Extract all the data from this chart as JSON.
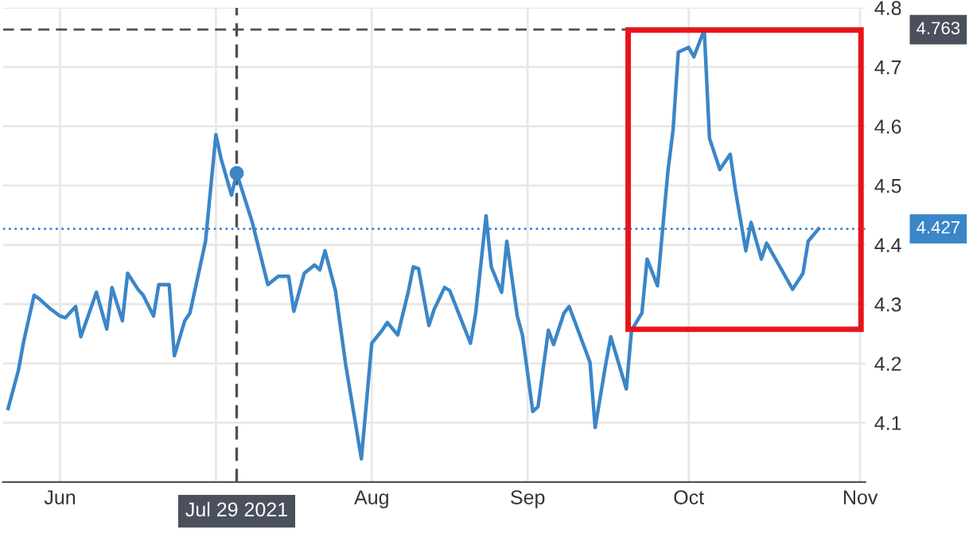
{
  "chart_data": {
    "type": "line",
    "series": [
      {
        "color": "#3b86c8",
        "x": [
          "2021-06-15",
          "2021-06-17",
          "2021-06-18",
          "2021-06-20",
          "2021-06-21",
          "2021-06-23",
          "2021-06-25",
          "2021-06-26",
          "2021-06-28",
          "2021-06-29",
          "2021-07-02",
          "2021-07-04",
          "2021-07-05",
          "2021-07-07",
          "2021-07-08",
          "2021-07-10",
          "2021-07-11",
          "2021-07-13",
          "2021-07-14",
          "2021-07-16",
          "2021-07-17",
          "2021-07-19",
          "2021-07-20",
          "2021-07-23",
          "2021-07-25",
          "2021-07-26",
          "2021-07-28",
          "2021-07-29",
          "2021-08-01",
          "2021-08-04",
          "2021-08-06",
          "2021-08-08",
          "2021-08-09",
          "2021-08-11",
          "2021-08-13",
          "2021-08-14",
          "2021-08-15",
          "2021-08-17",
          "2021-08-19",
          "2021-08-22",
          "2021-08-24",
          "2021-08-26",
          "2021-08-27",
          "2021-08-29",
          "2021-08-31",
          "2021-09-01",
          "2021-09-02",
          "2021-09-04",
          "2021-09-05",
          "2021-09-07",
          "2021-09-08",
          "2021-09-12",
          "2021-09-13",
          "2021-09-15",
          "2021-09-16",
          "2021-09-18",
          "2021-09-19",
          "2021-09-21",
          "2021-09-22",
          "2021-09-24",
          "2021-09-25",
          "2021-09-27",
          "2021-09-28",
          "2021-09-30",
          "2021-10-01",
          "2021-10-05",
          "2021-10-06",
          "2021-10-08",
          "2021-10-09",
          "2021-10-12",
          "2021-10-13",
          "2021-10-15",
          "2021-10-16",
          "2021-10-18",
          "2021-10-20",
          "2021-10-21",
          "2021-10-22",
          "2021-10-24",
          "2021-10-25",
          "2021-10-27",
          "2021-10-28",
          "2021-10-30",
          "2021-11-01",
          "2021-11-02",
          "2021-11-04",
          "2021-11-05",
          "2021-11-07",
          "2021-11-08",
          "2021-11-13",
          "2021-11-15",
          "2021-11-16",
          "2021-11-18"
        ],
        "values": [
          4.124,
          4.189,
          4.237,
          4.315,
          4.309,
          4.293,
          4.28,
          4.277,
          4.296,
          4.245,
          4.32,
          4.258,
          4.328,
          4.272,
          4.352,
          4.325,
          4.315,
          4.28,
          4.333,
          4.333,
          4.213,
          4.272,
          4.285,
          4.406,
          4.586,
          4.545,
          4.484,
          4.521,
          4.438,
          4.333,
          4.347,
          4.347,
          4.288,
          4.352,
          4.366,
          4.358,
          4.39,
          4.323,
          4.197,
          4.039,
          4.234,
          4.256,
          4.269,
          4.248,
          4.32,
          4.363,
          4.36,
          4.264,
          4.291,
          4.328,
          4.323,
          4.234,
          4.285,
          4.449,
          4.363,
          4.32,
          4.406,
          4.28,
          4.248,
          4.119,
          4.127,
          4.256,
          4.232,
          4.285,
          4.296,
          4.202,
          4.092,
          4.197,
          4.245,
          4.157,
          4.256,
          4.285,
          4.376,
          4.331,
          4.524,
          4.594,
          4.725,
          4.733,
          4.717,
          4.763,
          4.58,
          4.527,
          4.553,
          4.492,
          4.39,
          4.438,
          4.376,
          4.403,
          4.325,
          4.352,
          4.406,
          4.427
        ]
      },
      {
        "type": "scatter",
        "marker": "circle",
        "color": "#3b86c8",
        "x": [
          "2021-07-29"
        ],
        "values": [
          4.521
        ]
      }
    ],
    "xlim": [
      "2021-06-14",
      "2021-11-27"
    ],
    "xticks": [
      {
        "value": "2021-06-25",
        "label": "Jun"
      },
      {
        "value": "2021-07-25",
        "label": null
      },
      {
        "value": "2021-08-24",
        "label": "Aug"
      },
      {
        "value": "2021-09-23",
        "label": "Sep"
      },
      {
        "value": "2021-10-24",
        "label": "Oct"
      },
      {
        "value": "2021-11-26",
        "label": "Nov"
      }
    ],
    "ylim": [
      4.0,
      4.8
    ],
    "yticks": [
      4.1,
      4.2,
      4.3,
      4.4,
      4.5,
      4.6,
      4.7,
      4.8
    ],
    "grid": true,
    "line_style": "solid",
    "ref_lines": [
      {
        "axis": "x",
        "value": "2021-07-29",
        "label": "Jul 29 2021",
        "color": "#4a505c",
        "line_style": "dashed"
      },
      {
        "axis": "y",
        "value": 4.763,
        "label": "4.763",
        "color": "#4a505c",
        "line_style": "dashed"
      },
      {
        "axis": "y",
        "value": 4.427,
        "label": "4.427",
        "color": "#3b86c8",
        "line_style": "dotted"
      }
    ]
  }
}
